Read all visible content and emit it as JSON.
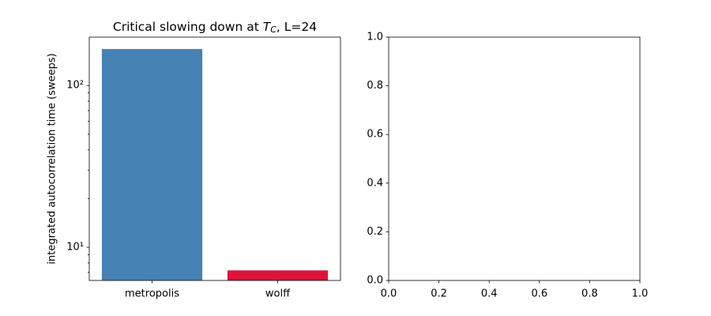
{
  "chart_data": [
    {
      "type": "bar",
      "title": [
        "Critical slowing down at ",
        "T",
        "C",
        ", L=24"
      ],
      "ylabel": "integrated autocorrelation time (sweeps)",
      "categories": [
        "metropolis",
        "wolff"
      ],
      "values": [
        168,
        7.2
      ],
      "colors": [
        "#4682b4",
        "#dc143c"
      ],
      "ylog": true,
      "ylim": [
        6.24,
        199
      ],
      "yticks": [
        {
          "value": 10,
          "label": "10¹"
        },
        {
          "value": 100,
          "label": "10²"
        }
      ],
      "y_minor_ticks": [
        7,
        8,
        9,
        20,
        30,
        40,
        50,
        60,
        70,
        80,
        90
      ]
    },
    {
      "type": "line",
      "series": [],
      "xlim": [
        0,
        1
      ],
      "ylim": [
        0,
        1
      ],
      "xticks": [
        {
          "value": 0,
          "label": "0.0"
        },
        0.2,
        0.4,
        0.6,
        0.8,
        {
          "value": 1,
          "label": "1.0"
        }
      ],
      "yticks": [
        {
          "value": 0,
          "label": "0.0"
        },
        0.2,
        0.4,
        0.6,
        0.8,
        {
          "value": 1,
          "label": "1.0"
        }
      ]
    }
  ]
}
